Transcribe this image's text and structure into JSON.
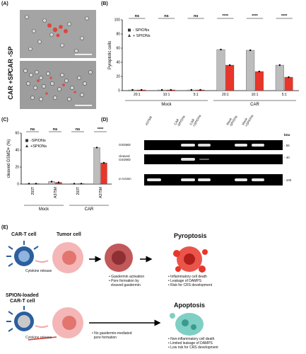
{
  "panel_labels": {
    "a": "(A)",
    "b": "(B)",
    "c": "(C)",
    "d": "(D)",
    "e": "(E)"
  },
  "panel_a": {
    "label_top": "CAR -SP",
    "label_bottom": "CAR +SP"
  },
  "colors": {
    "dark_gray": "#555555",
    "red": "#e8362a",
    "light_gray": "#bdbdbd",
    "pink": "#f2a6a6",
    "teal": "#7fcfc4",
    "blue": "#2b5f9e"
  },
  "chart_data": [
    {
      "type": "bar",
      "ylabel": "Pyroptotic cells",
      "ylim": [
        0,
        100
      ],
      "yticks": [
        "0",
        "20",
        "40",
        "60",
        "80",
        "100"
      ],
      "categories": [
        "20:1",
        "10:1",
        "5:1",
        "20:1",
        "10:1",
        "5:1"
      ],
      "groups": [
        "Mock",
        "CAR"
      ],
      "legend": [
        "- SPIONs",
        "+ SPIONs"
      ],
      "series": [
        {
          "name": "- SPIONs",
          "values": [
            1,
            1,
            1,
            58,
            57,
            36
          ]
        },
        {
          "name": "+ SPIONs",
          "values": [
            1,
            1,
            1,
            36,
            27,
            19
          ]
        }
      ],
      "significance": [
        "ns",
        "ns",
        "ns",
        "****",
        "****",
        "****"
      ]
    },
    {
      "type": "bar",
      "ylabel": "cleaved GSMD+ (%)",
      "ylim": [
        0,
        60
      ],
      "yticks": [
        "0",
        "20",
        "40",
        "60"
      ],
      "categories": [
        "293T",
        "A375M",
        "293T",
        "A375M"
      ],
      "groups": [
        "Mock",
        "CAR"
      ],
      "legend": [
        "-SPIONs",
        "+SPIONs"
      ],
      "series": [
        {
          "name": "-SPIONs",
          "values": [
            0.5,
            3,
            0.5,
            43
          ]
        },
        {
          "name": "+SPIONs",
          "values": [
            0.5,
            2,
            0.5,
            25
          ]
        }
      ],
      "significance": [
        "ns",
        "ns",
        "ns",
        "****"
      ]
    }
  ],
  "western": {
    "lanes": [
      "A375M",
      "CAR\n-SPIONs",
      "CAR\n+SPIONs",
      "Mock\n-SPIONs",
      "Mock\n+SPIONs"
    ],
    "rows": [
      "GSDMD",
      "cleaved\nGSDMD",
      "α-Actinin"
    ],
    "kda_label": "kDa",
    "markers": [
      "- 55",
      "- 40",
      "- 100"
    ]
  },
  "schematic": {
    "car_t": "CAR-T cell",
    "tumor": "Tumor cell",
    "pyroptosis": "Pyroptosis",
    "cytokine": "Cytokine release",
    "steps1": [
      "• Gasdermin activation",
      "• Pore formation by",
      "  cleaved gasdermin"
    ],
    "outcome1": [
      "• Inflammatory cell death",
      "• Leakage of DAMPS",
      "• Risk for CRS development"
    ],
    "spion_t": [
      "SPION-loaded",
      "CAR-T cell"
    ],
    "apoptosis": "Apoptosis",
    "cytokine2": "Cytokine release",
    "steps2": [
      "• No  gasdermin-mediated",
      "  pore formation"
    ],
    "outcome2": [
      "• Non-inflammatory cell death",
      "• Limited leakage of DAMPS",
      "• Low risk for CRS development"
    ]
  }
}
